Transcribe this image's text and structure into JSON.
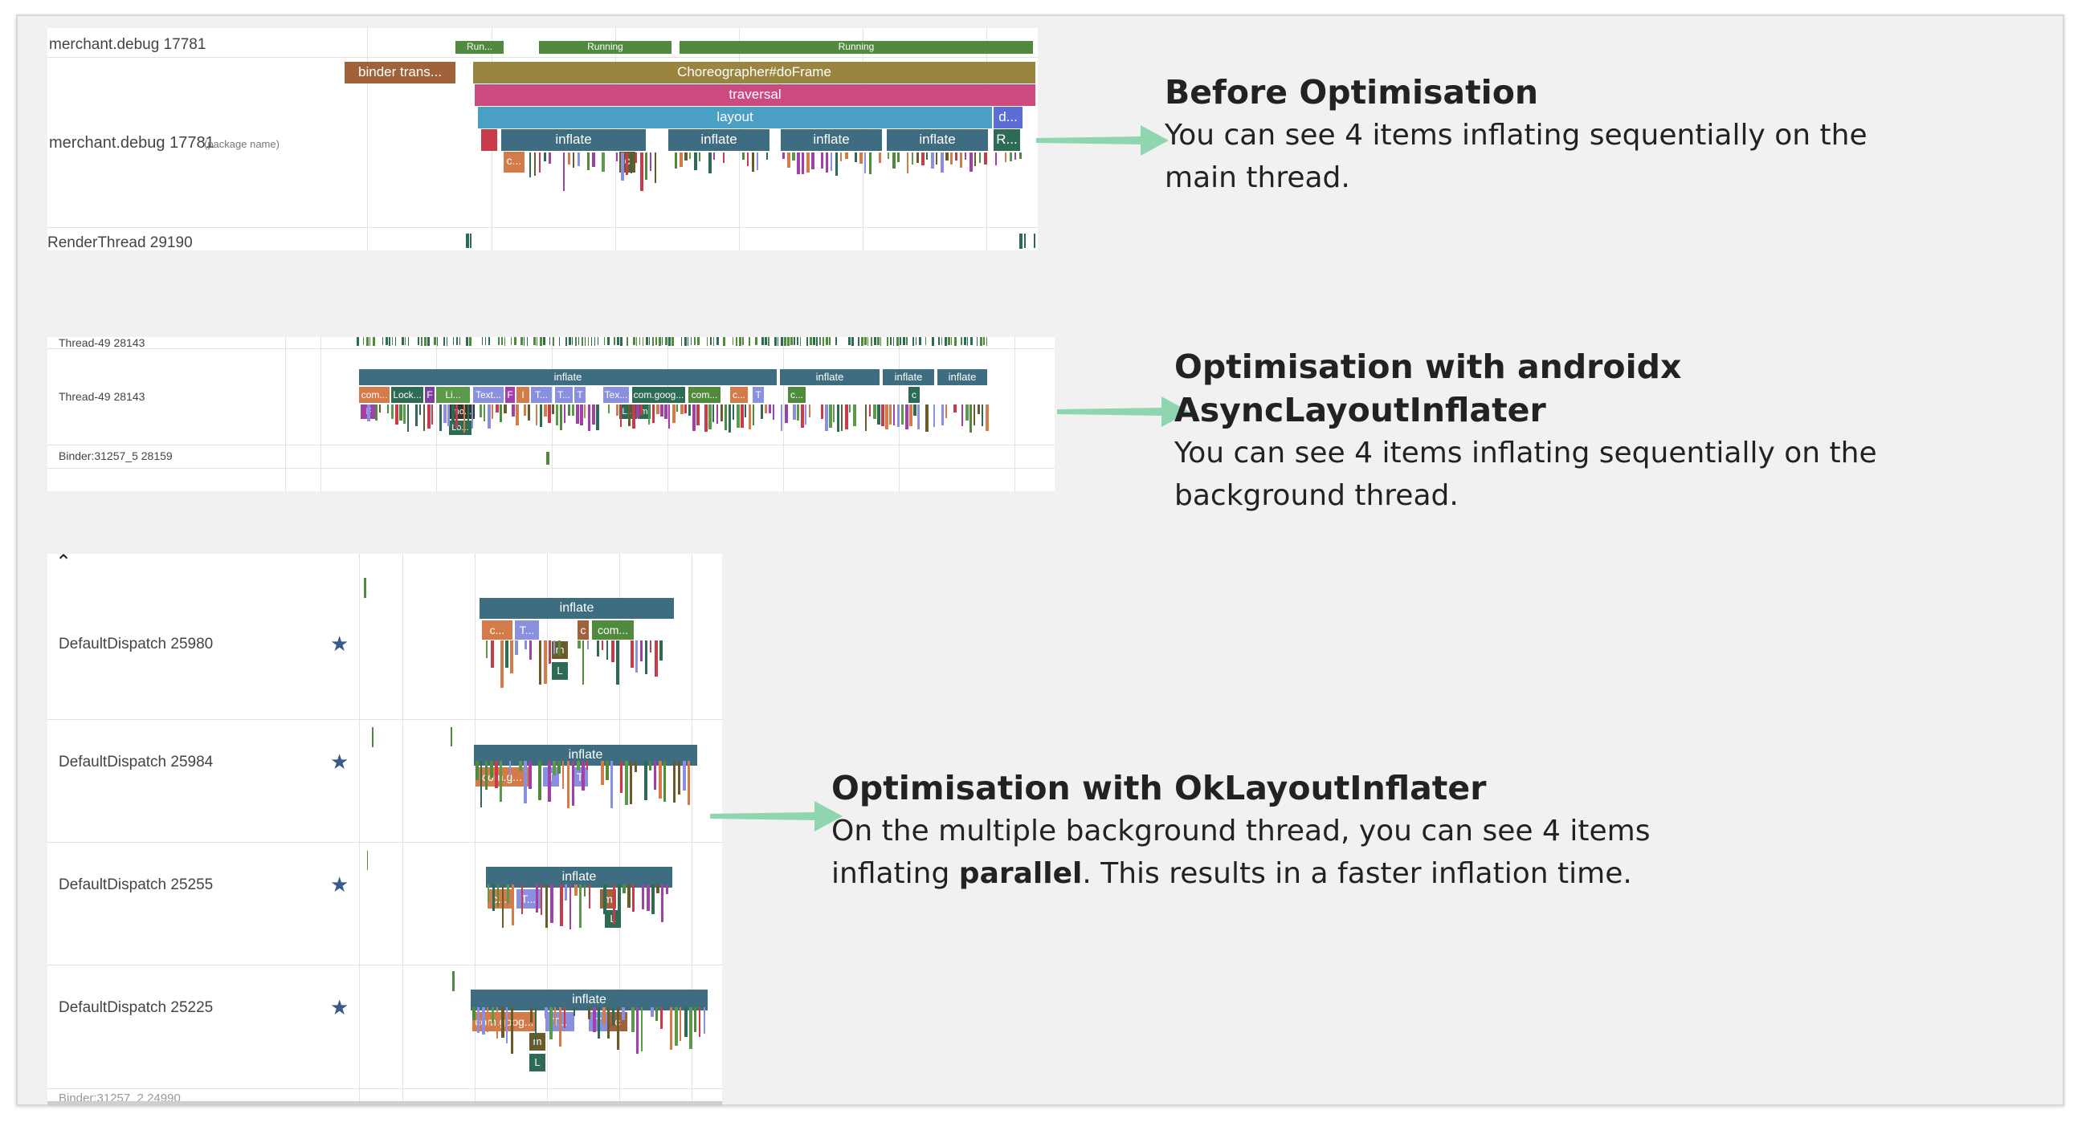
{
  "panel1": {
    "rows": [
      {
        "label": "merchant.debug 17781"
      },
      {
        "label": "merchant.debug 17781",
        "sublabel": "(package name)"
      },
      {
        "label": "RenderThread 29190"
      }
    ],
    "state_labels": [
      "Run...",
      "Running",
      "Running"
    ],
    "slices": {
      "binder": "binder trans...",
      "choreographer": "Choreographer#doFrame",
      "traversal": "traversal",
      "layout": "layout",
      "d": "d...",
      "inflate": "inflate",
      "r": "R...",
      "c1": "c...",
      "c2": "c"
    }
  },
  "panel2": {
    "rows": [
      {
        "label": "Thread-49 28143"
      },
      {
        "label": "Thread-49 28143"
      },
      {
        "label": "Binder:31257_5 28159"
      }
    ],
    "inflate": "inflate",
    "chips": [
      "com...",
      "Lock...",
      "F",
      "Li...",
      "Text...",
      "F",
      "I",
      "T...",
      "T...",
      "T",
      "Tex...",
      "com.goog...",
      "com...",
      "c...",
      "T",
      "c...",
      "c"
    ],
    "sub_chips": [
      "F",
      "mo...",
      "Lo...",
      "L...",
      "m"
    ]
  },
  "panel3": {
    "rows": [
      {
        "label": "DefaultDispatch 25980",
        "inflate": "inflate",
        "chips": [
          "c...",
          "T...",
          "c",
          "com..."
        ],
        "sub": [
          "m",
          "L"
        ]
      },
      {
        "label": "DefaultDispatch 25984",
        "inflate": "inflate",
        "chips": [
          "com.g...",
          "T",
          "T"
        ],
        "sub": []
      },
      {
        "label": "DefaultDispatch 25255",
        "inflate": "inflate",
        "chips": [
          "c...",
          "T...",
          "m"
        ],
        "sub": [
          "L"
        ]
      },
      {
        "label": "DefaultDispatch 25225",
        "inflate": "inflate",
        "chips": [
          "com.goog...",
          "T...",
          "T",
          "c"
        ],
        "sub": [
          "m",
          "L"
        ]
      }
    ],
    "top_glyph": "⌃",
    "bottom_cut_label": "Binder:31257_2 24990",
    "star": "★"
  },
  "notes": {
    "before": {
      "title": "Before Optimisation",
      "body": "You can see 4 items inflating sequentially on the main thread."
    },
    "async": {
      "title": "Optimisation with androidx AsyncLayoutInflater",
      "body": "You can see 4 items inflating sequentially on the background thread."
    },
    "ok": {
      "title": "Optimisation with OkLayoutInflater",
      "body_pre": "On the multiple background thread, you can see 4 items inflating ",
      "body_bold": "parallel",
      "body_post": ". This results in a faster inflation time."
    }
  },
  "colors": {
    "inflate": "#3e6d82",
    "binder": "#a0623a",
    "choreographer": "#9a8540",
    "traversal": "#cc4a7f",
    "layout": "#4aa0c4",
    "arrow": "#8fd6b0",
    "star": "#3a5a8c"
  }
}
